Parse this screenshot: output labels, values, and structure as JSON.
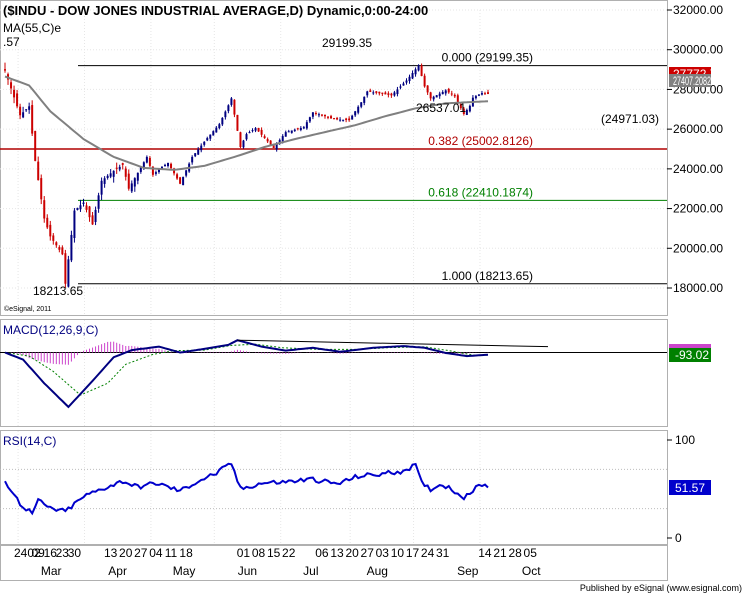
{
  "window": {
    "title": "($INDU - DOW JONES INDUSTRIAL AVERAGE,D) Dynamic,0:00-24:00",
    "footer": "Published by eSignal (www.esignal.com)",
    "copyright": "©eSignal, 2011"
  },
  "price_panel": {
    "ma_label": "MA(55,C)e",
    "ma_value_fragment": ".57",
    "last_price_label": "27772.76",
    "ma_value_label": "27407.2082",
    "axis_ticks": [
      "32000.00",
      "30000.00",
      "28000.00",
      "26000.00",
      "24000.00",
      "22000.00",
      "20000.00",
      "18000.00"
    ],
    "annotations": {
      "high": "29199.35",
      "low": "18213.65",
      "swing_low": "26537.01",
      "support": "(24971.03)"
    },
    "fib_levels": [
      {
        "label": "0.000 (29199.35)",
        "value": 29199.35,
        "color": "#000000"
      },
      {
        "label": "0.382 (25002.8126)",
        "value": 25002.81,
        "color": "#b00000"
      },
      {
        "label": "0.618 (22410.1874)",
        "value": 22410.19,
        "color": "#008000"
      },
      {
        "label": "1.000 (18213.65)",
        "value": 18213.65,
        "color": "#000000"
      }
    ]
  },
  "macd_panel": {
    "label": "MACD(12,26,9,C)",
    "value_label": "-93.02"
  },
  "rsi_panel": {
    "label": "RSI(14,C)",
    "value_label": "51.57",
    "axis_ticks": [
      "100",
      "0"
    ]
  },
  "x_axis": {
    "day_labels": [
      {
        "text": "2402",
        "i": 0
      },
      {
        "text": "09",
        "i": 9
      },
      {
        "text": "16",
        "i": 13
      },
      {
        "text": "23",
        "i": 17
      },
      {
        "text": "30",
        "i": 21
      },
      {
        "text": "13",
        "i": 33
      },
      {
        "text": "20",
        "i": 38
      },
      {
        "text": "27",
        "i": 43
      },
      {
        "text": "04",
        "i": 48
      },
      {
        "text": "11",
        "i": 53
      },
      {
        "text": "18",
        "i": 58
      },
      {
        "text": "01",
        "i": 77
      },
      {
        "text": "08",
        "i": 82
      },
      {
        "text": "15",
        "i": 87
      },
      {
        "text": "22",
        "i": 92
      },
      {
        "text": "06",
        "i": 103
      },
      {
        "text": "13",
        "i": 108
      },
      {
        "text": "20",
        "i": 113
      },
      {
        "text": "27",
        "i": 118
      },
      {
        "text": "03",
        "i": 123
      },
      {
        "text": "10",
        "i": 128
      },
      {
        "text": "17",
        "i": 133
      },
      {
        "text": "24",
        "i": 138
      },
      {
        "text": "31",
        "i": 143
      },
      {
        "text": "14",
        "i": 157
      },
      {
        "text": "21",
        "i": 162
      },
      {
        "text": "28",
        "i": 167
      },
      {
        "text": "05",
        "i": 172
      }
    ],
    "month_labels": [
      {
        "text": "Mar",
        "i": 12
      },
      {
        "text": "Apr",
        "i": 34
      },
      {
        "text": "May",
        "i": 56
      },
      {
        "text": "Jun",
        "i": 77
      },
      {
        "text": "Jul",
        "i": 98
      },
      {
        "text": "Aug",
        "i": 120
      },
      {
        "text": "Sep",
        "i": 150
      },
      {
        "text": "Oct",
        "i": 171
      }
    ]
  },
  "colors": {
    "up_candle": "#000080",
    "down_candle": "#cc0000",
    "ma_line": "#808080",
    "macd_line": "#000080",
    "signal_line": "#008000",
    "histogram": "#cc44cc",
    "rsi_line": "#0000cc",
    "last_price_bg": "#cc0000",
    "macd_value_bg": "#008000",
    "rsi_value_bg": "#0000cc"
  },
  "chart_data": {
    "type": "line",
    "title": "$INDU - DOW JONES INDUSTRIAL AVERAGE",
    "xlabel": "",
    "ylabel": "",
    "ylim": [
      16500,
      32200
    ],
    "x_range": [
      "2020-02-24",
      "2020-10-05"
    ],
    "price_anchors": [
      [
        "2020-02-24",
        28950
      ],
      [
        "2020-02-27",
        27600
      ],
      [
        "2020-03-02",
        26700
      ],
      [
        "2020-03-05",
        27150
      ],
      [
        "2020-03-09",
        24400
      ],
      [
        "2020-03-12",
        21500
      ],
      [
        "2020-03-16",
        20600
      ],
      [
        "2020-03-20",
        19700
      ],
      [
        "2020-03-23",
        18213.65
      ],
      [
        "2020-03-26",
        21900
      ],
      [
        "2020-03-31",
        22300
      ],
      [
        "2020-04-03",
        21200
      ],
      [
        "2020-04-08",
        23400
      ],
      [
        "2020-04-14",
        23900
      ],
      [
        "2020-04-17",
        24200
      ],
      [
        "2020-04-21",
        23000
      ],
      [
        "2020-04-29",
        24600
      ],
      [
        "2020-05-01",
        23700
      ],
      [
        "2020-05-06",
        24100
      ],
      [
        "2020-05-08",
        24300
      ],
      [
        "2020-05-14",
        23250
      ],
      [
        "2020-05-20",
        24600
      ],
      [
        "2020-05-27",
        25550
      ],
      [
        "2020-06-02",
        26250
      ],
      [
        "2020-06-05",
        27200
      ],
      [
        "2020-06-08",
        27550
      ],
      [
        "2020-06-11",
        25100
      ],
      [
        "2020-06-15",
        25750
      ],
      [
        "2020-06-18",
        26050
      ],
      [
        "2020-06-26",
        25050
      ],
      [
        "2020-07-02",
        25850
      ],
      [
        "2020-07-10",
        26100
      ],
      [
        "2020-07-15",
        26850
      ],
      [
        "2020-07-24",
        26500
      ],
      [
        "2020-07-31",
        26450
      ],
      [
        "2020-08-06",
        27350
      ],
      [
        "2020-08-10",
        27900
      ],
      [
        "2020-08-20",
        27700
      ],
      [
        "2020-08-27",
        28450
      ],
      [
        "2020-09-02",
        29199.35
      ],
      [
        "2020-09-04",
        28150
      ],
      [
        "2020-09-08",
        27550
      ],
      [
        "2020-09-15",
        27950
      ],
      [
        "2020-09-18",
        27650
      ],
      [
        "2020-09-23",
        26763
      ],
      [
        "2020-09-25",
        27173
      ],
      [
        "2020-09-28",
        27584
      ],
      [
        "2020-10-01",
        27816
      ],
      [
        "2020-10-05",
        27772.76
      ]
    ],
    "ma55_anchors": [
      [
        "2020-02-24",
        28650
      ],
      [
        "2020-03-05",
        28200
      ],
      [
        "2020-03-16",
        26900
      ],
      [
        "2020-03-31",
        25500
      ],
      [
        "2020-04-14",
        24600
      ],
      [
        "2020-04-28",
        24050
      ],
      [
        "2020-05-12",
        23950
      ],
      [
        "2020-05-26",
        24150
      ],
      [
        "2020-06-09",
        24600
      ],
      [
        "2020-06-23",
        25100
      ],
      [
        "2020-07-07",
        25500
      ],
      [
        "2020-07-21",
        25850
      ],
      [
        "2020-08-04",
        26200
      ],
      [
        "2020-08-18",
        26650
      ],
      [
        "2020-09-01",
        27050
      ],
      [
        "2020-09-15",
        27300
      ],
      [
        "2020-10-05",
        27407.2082
      ]
    ],
    "macd_anchors": [
      [
        "2020-02-24",
        0
      ],
      [
        "2020-03-03",
        -300
      ],
      [
        "2020-03-12",
        -1300
      ],
      [
        "2020-03-24",
        -2300
      ],
      [
        "2020-04-03",
        -1200
      ],
      [
        "2020-04-14",
        -200
      ],
      [
        "2020-04-22",
        100
      ],
      [
        "2020-05-05",
        250
      ],
      [
        "2020-05-14",
        0
      ],
      [
        "2020-05-26",
        150
      ],
      [
        "2020-06-05",
        320
      ],
      [
        "2020-06-10",
        520
      ],
      [
        "2020-06-22",
        250
      ],
      [
        "2020-07-02",
        80
      ],
      [
        "2020-07-15",
        200
      ],
      [
        "2020-07-28",
        30
      ],
      [
        "2020-08-12",
        200
      ],
      [
        "2020-08-26",
        270
      ],
      [
        "2020-09-04",
        200
      ],
      [
        "2020-09-15",
        -20
      ],
      [
        "2020-09-24",
        -150
      ],
      [
        "2020-10-05",
        -93.02
      ]
    ],
    "signal_anchors": [
      [
        "2020-02-24",
        0
      ],
      [
        "2020-03-05",
        -150
      ],
      [
        "2020-03-17",
        -800
      ],
      [
        "2020-03-30",
        -1800
      ],
      [
        "2020-04-10",
        -1300
      ],
      [
        "2020-04-20",
        -500
      ],
      [
        "2020-05-01",
        -80
      ],
      [
        "2020-05-12",
        80
      ],
      [
        "2020-05-26",
        100
      ],
      [
        "2020-06-08",
        300
      ],
      [
        "2020-06-18",
        350
      ],
      [
        "2020-07-01",
        200
      ],
      [
        "2020-07-17",
        130
      ],
      [
        "2020-08-04",
        130
      ],
      [
        "2020-08-20",
        210
      ],
      [
        "2020-09-04",
        240
      ],
      [
        "2020-09-16",
        80
      ],
      [
        "2020-09-28",
        -110
      ],
      [
        "2020-10-05",
        -110
      ]
    ],
    "macd_trendline": [
      [
        "2020-06-10",
        520
      ],
      [
        "2020-10-05",
        300
      ]
    ],
    "rsi_anchors": [
      [
        "2020-02-24",
        58
      ],
      [
        "2020-03-02",
        35
      ],
      [
        "2020-03-06",
        25
      ],
      [
        "2020-03-10",
        38
      ],
      [
        "2020-03-16",
        30
      ],
      [
        "2020-03-23",
        27
      ],
      [
        "2020-03-31",
        42
      ],
      [
        "2020-04-08",
        50
      ],
      [
        "2020-04-17",
        58
      ],
      [
        "2020-04-24",
        52
      ],
      [
        "2020-05-04",
        56
      ],
      [
        "2020-05-14",
        48
      ],
      [
        "2020-05-22",
        58
      ],
      [
        "2020-06-01",
        66
      ],
      [
        "2020-06-08",
        76
      ],
      [
        "2020-06-11",
        50
      ],
      [
        "2020-06-22",
        56
      ],
      [
        "2020-07-01",
        57
      ],
      [
        "2020-07-15",
        60
      ],
      [
        "2020-07-27",
        55
      ],
      [
        "2020-08-05",
        63
      ],
      [
        "2020-08-14",
        65
      ],
      [
        "2020-08-25",
        68
      ],
      [
        "2020-09-01",
        74
      ],
      [
        "2020-09-03",
        56
      ],
      [
        "2020-09-08",
        50
      ],
      [
        "2020-09-14",
        55
      ],
      [
        "2020-09-23",
        42
      ],
      [
        "2020-10-01",
        55
      ],
      [
        "2020-10-05",
        51.57
      ]
    ]
  }
}
